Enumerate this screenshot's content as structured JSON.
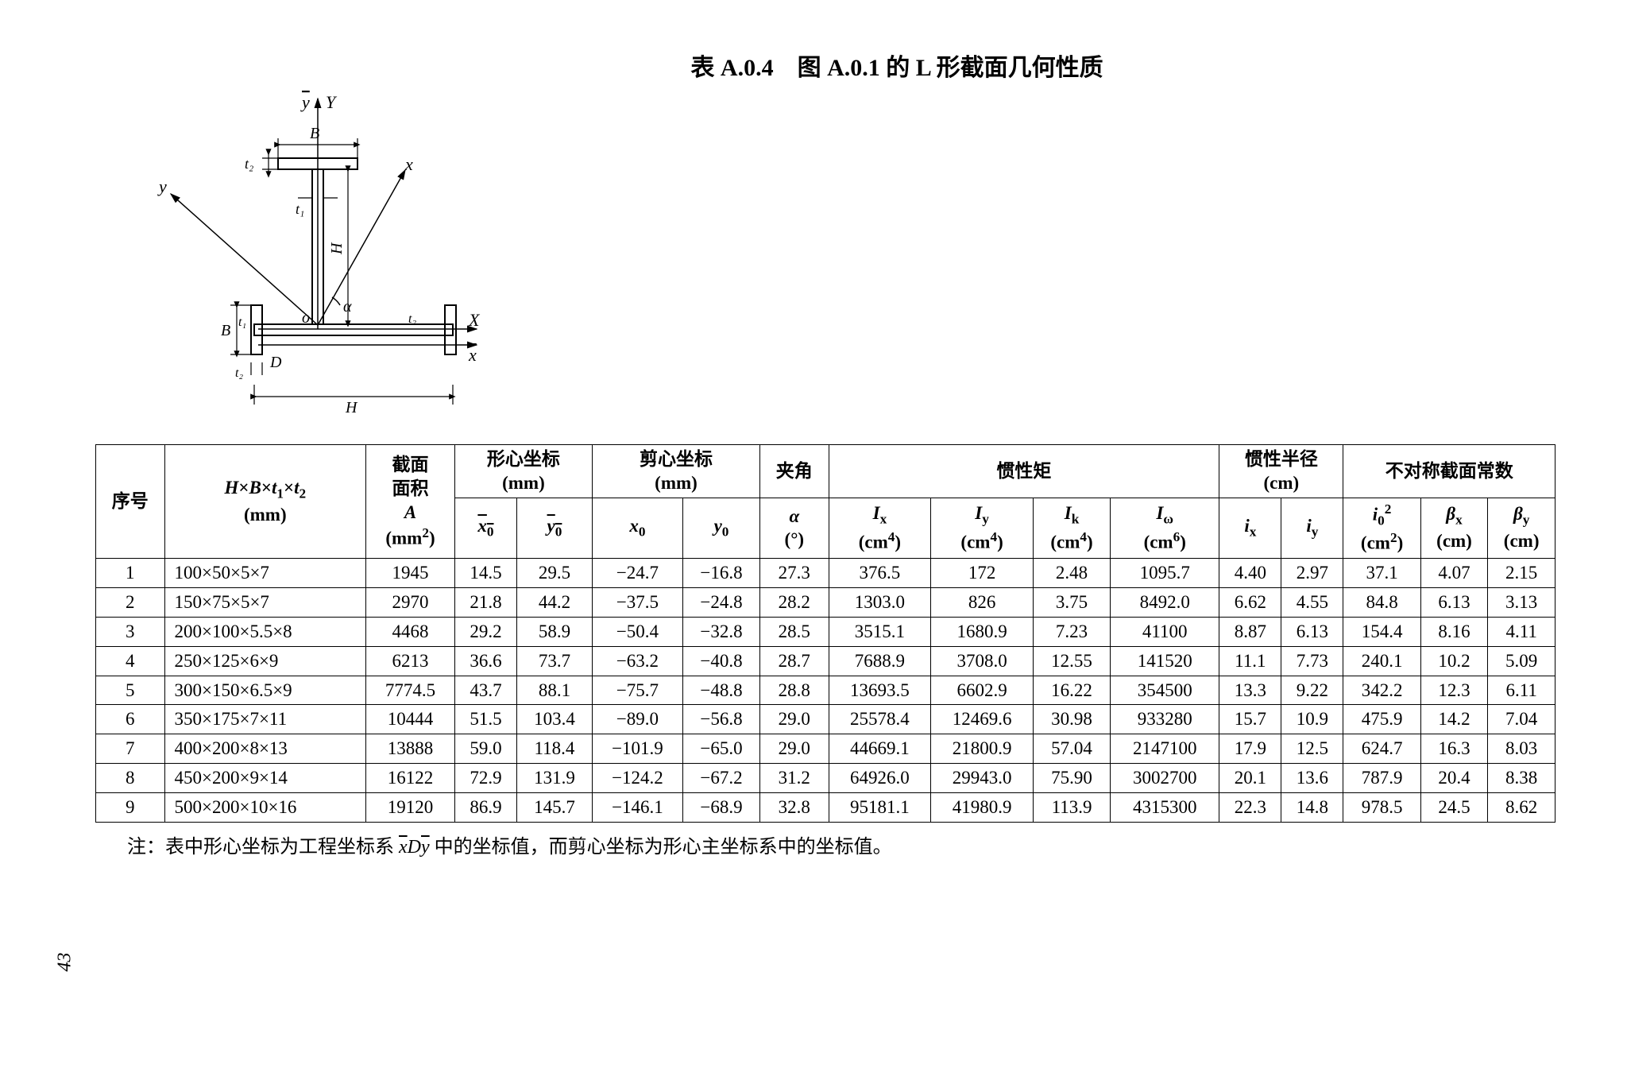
{
  "title": "表 A.0.4　图 A.0.1 的 L 形截面几何性质",
  "diagram": {
    "labels": {
      "ybar": "y",
      "Y": "Y",
      "B_top": "B",
      "t2_top": "t₂",
      "y_axis": "y",
      "x_axis": "x",
      "t1_top": "t₁",
      "H_right": "H",
      "alpha": "α",
      "o": "o",
      "B_left": "B",
      "t1_left": "t₁",
      "t2_left": "t₂",
      "D": "D",
      "t2_right": "t₂",
      "X": "X",
      "xbar": "x",
      "H_bottom": "H"
    }
  },
  "headers": {
    "seq": "序号",
    "dims": "H×B×t₁×t₂\n(mm)",
    "area_top": "截面\n面积",
    "area_sym": "A",
    "area_unit": "(mm²)",
    "centroid": "形心坐标\n(mm)",
    "shear": "剪心坐标\n(mm)",
    "angle_top": "夹角",
    "inertia": "惯性矩",
    "radius": "惯性半径\n(cm)",
    "asym": "不对称截面常数",
    "x0bar": "x₀",
    "y0bar": "y₀",
    "x0": "x₀",
    "y0": "y₀",
    "alpha": "α",
    "alpha_unit": "(°)",
    "Ix": "Iₓ",
    "Ix_unit": "(cm⁴)",
    "Iy": "Iᵧ",
    "Iy_unit": "(cm⁴)",
    "Ik": "Iₖ",
    "Ik_unit": "(cm⁴)",
    "Iw": "Iω",
    "Iw_unit": "(cm⁶)",
    "ix": "iₓ",
    "iy": "iᵧ",
    "i0": "i₀²",
    "i0_unit": "(cm²)",
    "bx": "βₓ",
    "bx_unit": "(cm)",
    "by": "βᵧ",
    "by_unit": "(cm)"
  },
  "rows": [
    {
      "n": "1",
      "d": "100×50×5×7",
      "A": "1945",
      "xb": "14.5",
      "yb": "29.5",
      "x0": "−24.7",
      "y0": "−16.8",
      "a": "27.3",
      "Ix": "376.5",
      "Iy": "172",
      "Ik": "2.48",
      "Iw": "1095.7",
      "ix": "4.40",
      "iy": "2.97",
      "i0": "37.1",
      "bx": "4.07",
      "by": "2.15"
    },
    {
      "n": "2",
      "d": "150×75×5×7",
      "A": "2970",
      "xb": "21.8",
      "yb": "44.2",
      "x0": "−37.5",
      "y0": "−24.8",
      "a": "28.2",
      "Ix": "1303.0",
      "Iy": "826",
      "Ik": "3.75",
      "Iw": "8492.0",
      "ix": "6.62",
      "iy": "4.55",
      "i0": "84.8",
      "bx": "6.13",
      "by": "3.13"
    },
    {
      "n": "3",
      "d": "200×100×5.5×8",
      "A": "4468",
      "xb": "29.2",
      "yb": "58.9",
      "x0": "−50.4",
      "y0": "−32.8",
      "a": "28.5",
      "Ix": "3515.1",
      "Iy": "1680.9",
      "Ik": "7.23",
      "Iw": "41100",
      "ix": "8.87",
      "iy": "6.13",
      "i0": "154.4",
      "bx": "8.16",
      "by": "4.11"
    },
    {
      "n": "4",
      "d": "250×125×6×9",
      "A": "6213",
      "xb": "36.6",
      "yb": "73.7",
      "x0": "−63.2",
      "y0": "−40.8",
      "a": "28.7",
      "Ix": "7688.9",
      "Iy": "3708.0",
      "Ik": "12.55",
      "Iw": "141520",
      "ix": "11.1",
      "iy": "7.73",
      "i0": "240.1",
      "bx": "10.2",
      "by": "5.09"
    },
    {
      "n": "5",
      "d": "300×150×6.5×9",
      "A": "7774.5",
      "xb": "43.7",
      "yb": "88.1",
      "x0": "−75.7",
      "y0": "−48.8",
      "a": "28.8",
      "Ix": "13693.5",
      "Iy": "6602.9",
      "Ik": "16.22",
      "Iw": "354500",
      "ix": "13.3",
      "iy": "9.22",
      "i0": "342.2",
      "bx": "12.3",
      "by": "6.11"
    },
    {
      "n": "6",
      "d": "350×175×7×11",
      "A": "10444",
      "xb": "51.5",
      "yb": "103.4",
      "x0": "−89.0",
      "y0": "−56.8",
      "a": "29.0",
      "Ix": "25578.4",
      "Iy": "12469.6",
      "Ik": "30.98",
      "Iw": "933280",
      "ix": "15.7",
      "iy": "10.9",
      "i0": "475.9",
      "bx": "14.2",
      "by": "7.04"
    },
    {
      "n": "7",
      "d": "400×200×8×13",
      "A": "13888",
      "xb": "59.0",
      "yb": "118.4",
      "x0": "−101.9",
      "y0": "−65.0",
      "a": "29.0",
      "Ix": "44669.1",
      "Iy": "21800.9",
      "Ik": "57.04",
      "Iw": "2147100",
      "ix": "17.9",
      "iy": "12.5",
      "i0": "624.7",
      "bx": "16.3",
      "by": "8.03"
    },
    {
      "n": "8",
      "d": "450×200×9×14",
      "A": "16122",
      "xb": "72.9",
      "yb": "131.9",
      "x0": "−124.2",
      "y0": "−67.2",
      "a": "31.2",
      "Ix": "64926.0",
      "Iy": "29943.0",
      "Ik": "75.90",
      "Iw": "3002700",
      "ix": "20.1",
      "iy": "13.6",
      "i0": "787.9",
      "bx": "20.4",
      "by": "8.38"
    },
    {
      "n": "9",
      "d": "500×200×10×16",
      "A": "19120",
      "xb": "86.9",
      "yb": "145.7",
      "x0": "−146.1",
      "y0": "−68.9",
      "a": "32.8",
      "Ix": "95181.1",
      "Iy": "41980.9",
      "Ik": "113.9",
      "Iw": "4315300",
      "ix": "22.3",
      "iy": "14.8",
      "i0": "978.5",
      "bx": "24.5",
      "by": "8.62"
    }
  ],
  "note": "注：表中形心坐标为工程坐标系 x̄Dȳ 中的坐标值，而剪心坐标为形心主坐标系中的坐标值。",
  "pagenum": "43",
  "style": {
    "border_color": "#000000",
    "bg": "#ffffff",
    "text_color": "#000000",
    "title_fontsize": 30,
    "table_fontsize": 23,
    "note_fontsize": 24
  }
}
